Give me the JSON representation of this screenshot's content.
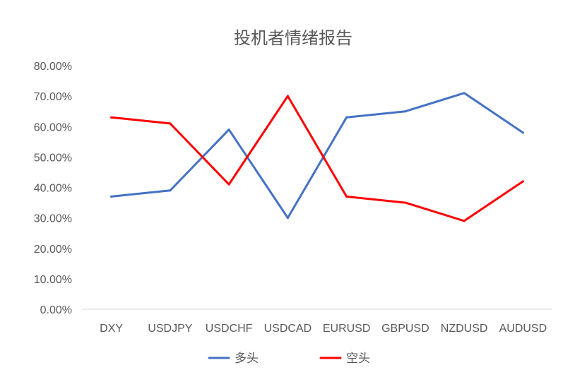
{
  "chart_data": {
    "type": "line",
    "title": "投机者情绪报告",
    "categories": [
      "DXY",
      "USDJPY",
      "USDCHF",
      "USDCAD",
      "EURUSD",
      "GBPUSD",
      "NZDUSD",
      "AUDUSD"
    ],
    "series": [
      {
        "name": "多头",
        "color": "#4472C4",
        "values": [
          0.37,
          0.39,
          0.59,
          0.3,
          0.63,
          0.65,
          0.71,
          0.58
        ]
      },
      {
        "name": "空头",
        "color": "#FF0000",
        "values": [
          0.63,
          0.61,
          0.41,
          0.7,
          0.37,
          0.35,
          0.29,
          0.42
        ]
      }
    ],
    "y_ticks": [
      "0.00%",
      "10.00%",
      "20.00%",
      "30.00%",
      "40.00%",
      "50.00%",
      "60.00%",
      "70.00%",
      "80.00%"
    ],
    "ylim": [
      0,
      0.8
    ],
    "grid": false,
    "legend_position": "bottom"
  }
}
